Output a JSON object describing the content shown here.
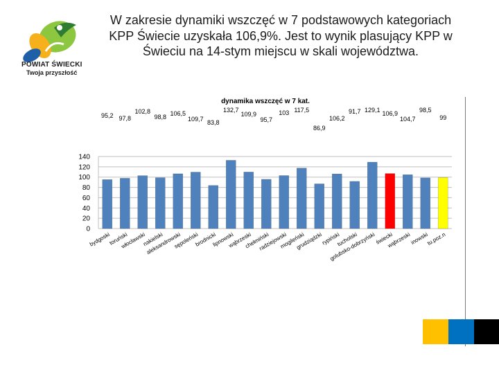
{
  "slide": {
    "title": "W zakresie dynamiki wszczęć w 7 podstawowych kategoriach KPP Świecie uzyskała 106,9%. Jest to wynik plasujący KPP w Świeciu na 14-stym miejscu w skali województwa."
  },
  "logo": {
    "name": "POWIAT ŚWIECKI",
    "tagline": "Twoja przyszłość",
    "icon": "powiat-swiecki-logo"
  },
  "colors": {
    "bar_default": "#4F81BD",
    "bar_highlight_red": "#FF0000",
    "bar_highlight_yellow": "#FFFF00",
    "accent_yellow": "#FFC000",
    "accent_blue": "#0070C0",
    "accent_black": "#000000"
  },
  "chart_data": {
    "type": "bar",
    "title": "dynamika wszczęć w 7 kat.",
    "xlabel": "",
    "ylabel": "",
    "ylim": [
      0,
      140
    ],
    "yticks": [
      0,
      20,
      40,
      60,
      80,
      100,
      120,
      140
    ],
    "grid": true,
    "legend": "none",
    "categories": [
      "bydgoski",
      "toruński",
      "włocławski",
      "nakielski",
      "aleksandrowski",
      "sępoleński",
      "brodnicki",
      "lipnowski",
      "wąbrzeski",
      "chełmiński",
      "radziejowski",
      "mogileński",
      "grudziądzki",
      "rypiński",
      "tucholski",
      "golubsko-dobrzyński",
      "świecki",
      "wąbrzeski",
      "inowski",
      "tu.poz.n"
    ],
    "values": [
      95.2,
      97.8,
      102.8,
      98.8,
      106.5,
      109.7,
      83.8,
      132.7,
      109.9,
      95.7,
      103,
      117.5,
      86.9,
      106.2,
      91.7,
      129.1,
      106.9,
      104.7,
      98.5,
      99
    ],
    "data_labels": [
      "95,2",
      "97,8",
      "102,8",
      "98,8",
      "106,5",
      "109,7",
      "83,8",
      "132,7",
      "109,9",
      "95,7",
      "103",
      "117,5",
      "86,9",
      "106,2",
      "91,7",
      "129,1",
      "106,9",
      "104,7",
      "98,5",
      "99"
    ],
    "highlight": {
      "16": "red",
      "19": "yellow"
    }
  }
}
